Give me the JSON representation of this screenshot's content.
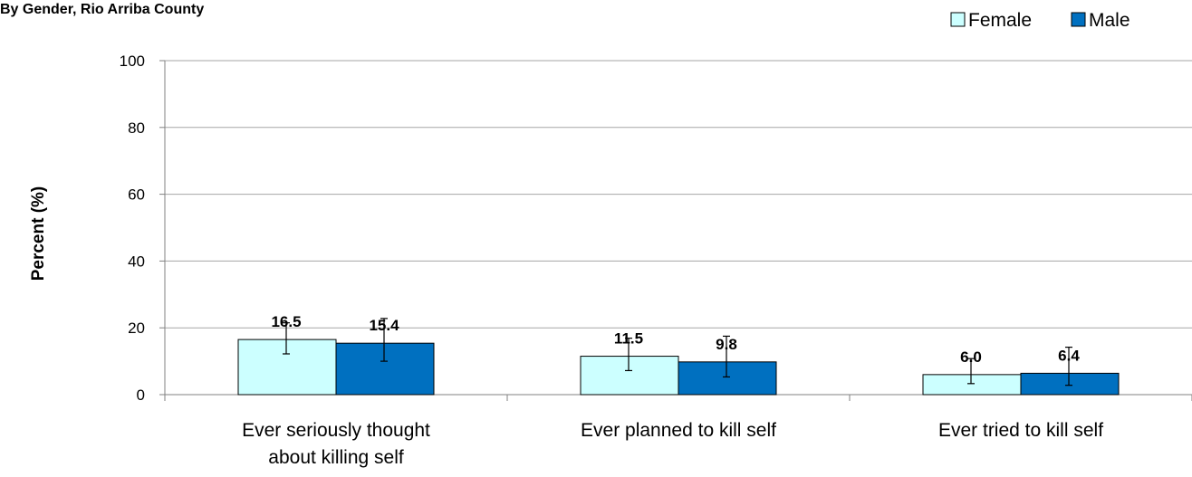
{
  "chart_data": {
    "type": "bar",
    "title": "By Gender, Rio Arriba County",
    "ylabel": "Percent (%)",
    "xlabel": "",
    "ylim": [
      0,
      100
    ],
    "yticks": [
      0,
      20,
      40,
      60,
      80,
      100
    ],
    "grid": true,
    "legend_position": "top-right",
    "categories": [
      [
        "Ever seriously thought",
        "about killing self"
      ],
      [
        "Ever planned to kill self"
      ],
      [
        "Ever tried to kill self"
      ]
    ],
    "series": [
      {
        "name": "Female",
        "color": "#ccffff",
        "values": [
          16.5,
          11.5,
          6.0
        ],
        "labels": [
          "16.5",
          "11.5",
          "6.0"
        ],
        "ci_low": [
          12.2,
          7.2,
          3.3
        ],
        "ci_high": [
          21.5,
          16.9,
          10.8
        ]
      },
      {
        "name": "Male",
        "color": "#0070c0",
        "values": [
          15.4,
          9.8,
          6.4
        ],
        "labels": [
          "15.4",
          "9.8",
          "6.4"
        ],
        "ci_low": [
          10.0,
          5.3,
          2.8
        ],
        "ci_high": [
          22.8,
          17.5,
          14.2
        ]
      }
    ]
  }
}
